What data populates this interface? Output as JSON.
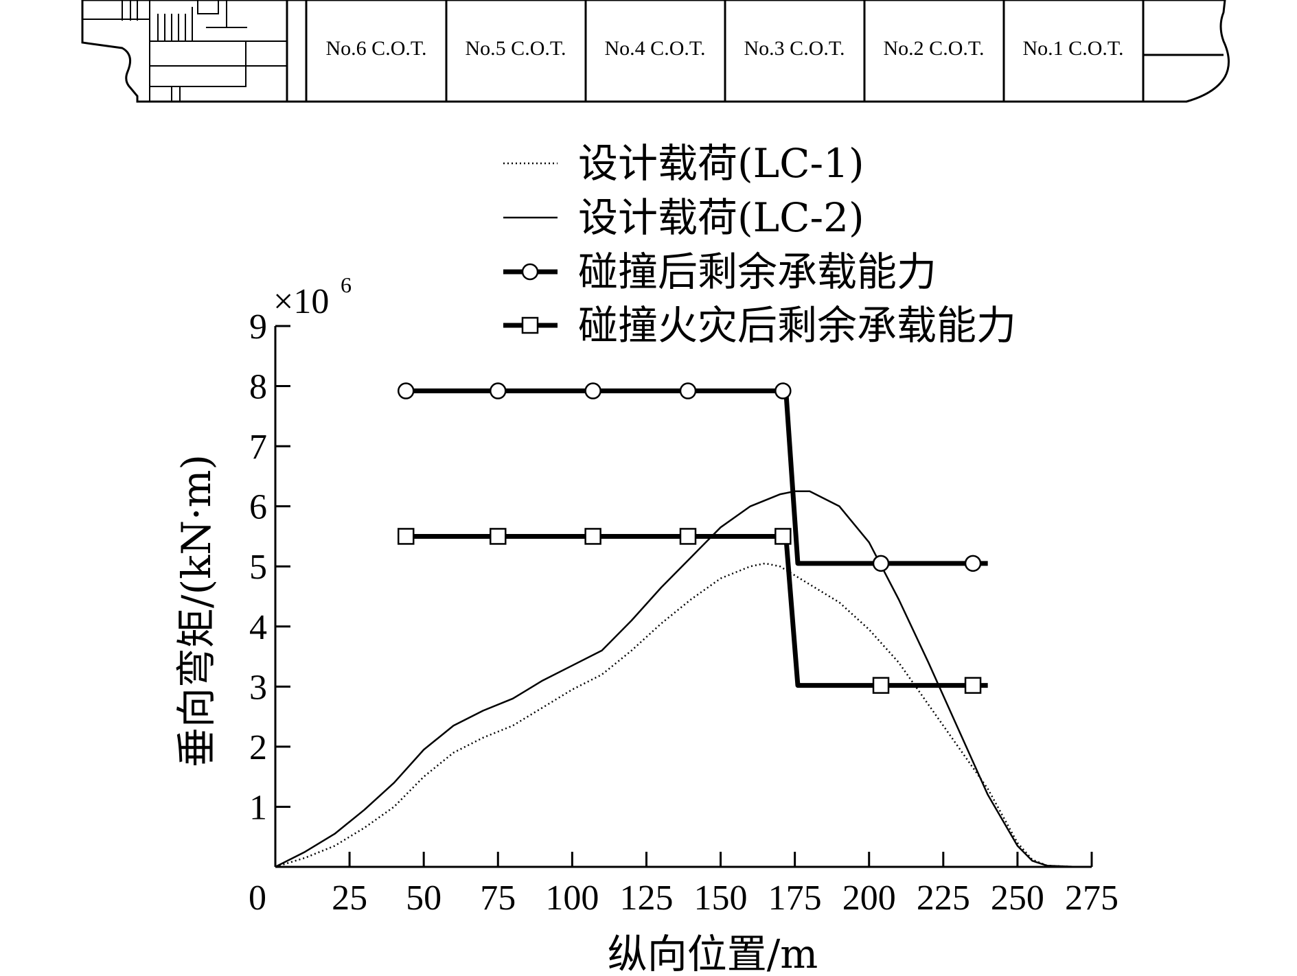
{
  "ship_diagram": {
    "tanks": [
      "No.6 C.O.T.",
      "No.5 C.O.T.",
      "No.4 C.O.T.",
      "No.3 C.O.T.",
      "No.2 C.O.T.",
      "No.1 C.O.T."
    ]
  },
  "chart_data": {
    "type": "line",
    "title": "",
    "xlabel": "纵向位置/m",
    "ylabel": "垂向弯矩/(kN·m)",
    "y_multiplier": "×10",
    "y_multiplier_exp": "6",
    "xlim": [
      0,
      275
    ],
    "ylim": [
      0,
      9
    ],
    "x_ticks": [
      0,
      25,
      50,
      75,
      100,
      125,
      150,
      175,
      200,
      225,
      250,
      275
    ],
    "y_ticks": [
      1,
      2,
      3,
      4,
      5,
      6,
      7,
      8,
      9
    ],
    "origin_label": "0",
    "grid": false,
    "legend_position": "top-right",
    "series": [
      {
        "name": "设计载荷(LC-1)",
        "style": "dotted",
        "color": "#000000",
        "x": [
          0,
          10,
          20,
          30,
          40,
          50,
          60,
          70,
          80,
          90,
          100,
          110,
          120,
          130,
          140,
          150,
          160,
          165,
          170,
          180,
          190,
          200,
          210,
          220,
          230,
          240,
          250,
          255,
          260,
          270
        ],
        "y": [
          0,
          0.15,
          0.35,
          0.65,
          1.0,
          1.5,
          1.9,
          2.15,
          2.35,
          2.65,
          2.95,
          3.2,
          3.6,
          4.05,
          4.45,
          4.8,
          5.0,
          5.05,
          5.0,
          4.7,
          4.4,
          3.95,
          3.4,
          2.7,
          2.0,
          1.3,
          0.4,
          0.12,
          0.02,
          0
        ]
      },
      {
        "name": "设计载荷(LC-2)",
        "style": "solid",
        "color": "#000000",
        "x": [
          0,
          10,
          20,
          30,
          40,
          50,
          60,
          70,
          80,
          90,
          100,
          110,
          120,
          130,
          140,
          150,
          160,
          170,
          175,
          180,
          190,
          200,
          210,
          220,
          230,
          240,
          250,
          255,
          260,
          270
        ],
        "y": [
          0,
          0.25,
          0.55,
          0.95,
          1.4,
          1.95,
          2.35,
          2.6,
          2.8,
          3.1,
          3.35,
          3.6,
          4.1,
          4.65,
          5.15,
          5.65,
          6.0,
          6.2,
          6.25,
          6.25,
          6.0,
          5.4,
          4.45,
          3.4,
          2.3,
          1.2,
          0.35,
          0.1,
          0.02,
          0
        ]
      },
      {
        "name": "碰撞后剩余承载能力",
        "style": "thick-solid-circle-markers",
        "color": "#000000",
        "x": [
          44,
          172,
          176,
          240
        ],
        "y": [
          7.92,
          7.92,
          5.05,
          5.05
        ],
        "marker_x": [
          44,
          75,
          107,
          139,
          171,
          204,
          235
        ],
        "marker_y": [
          7.92,
          7.92,
          7.92,
          7.92,
          7.92,
          5.05,
          5.05
        ]
      },
      {
        "name": "碰撞火灾后剩余承载能力",
        "style": "thick-solid-square-markers",
        "color": "#000000",
        "x": [
          44,
          172,
          176,
          240
        ],
        "y": [
          5.5,
          5.5,
          3.02,
          3.02
        ],
        "marker_x": [
          44,
          75,
          107,
          139,
          171,
          204,
          235
        ],
        "marker_y": [
          5.5,
          5.5,
          5.5,
          5.5,
          5.5,
          3.02,
          3.02
        ]
      }
    ]
  }
}
